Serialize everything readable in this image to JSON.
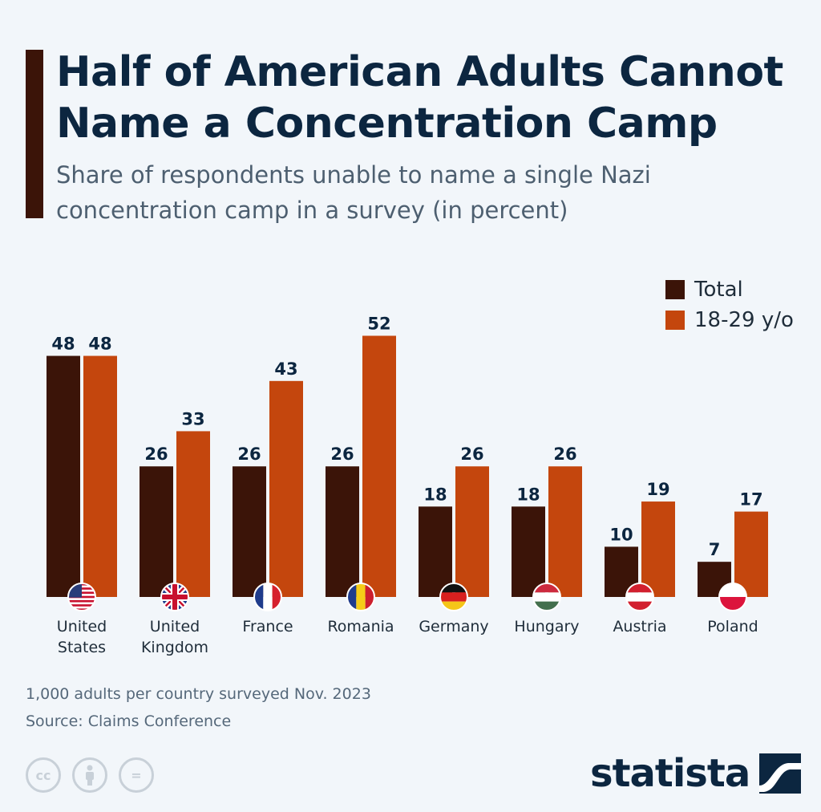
{
  "header": {
    "title": "Half of American Adults Cannot Name a Concentration Camp",
    "subtitle": "Share of respondents unable to name a single Nazi concentration camp in a survey (in percent)"
  },
  "chart_data": {
    "type": "bar",
    "title": "Half of American Adults Cannot Name a Concentration Camp",
    "subtitle": "Share of respondents unable to name a single Nazi concentration camp in a survey (in percent)",
    "xlabel": "",
    "ylabel": "",
    "ylim": [
      0,
      52
    ],
    "grid": false,
    "legend_position": "top-right",
    "categories": [
      "United States",
      "United Kingdom",
      "France",
      "Romania",
      "Germany",
      "Hungary",
      "Austria",
      "Poland"
    ],
    "category_lines": [
      [
        "United",
        "States"
      ],
      [
        "United",
        "Kingdom"
      ],
      [
        "France"
      ],
      [
        "Romania"
      ],
      [
        "Germany"
      ],
      [
        "Hungary"
      ],
      [
        "Austria"
      ],
      [
        "Poland"
      ]
    ],
    "flags": [
      "us-flag-icon",
      "uk-flag-icon",
      "france-flag-icon",
      "romania-flag-icon",
      "germany-flag-icon",
      "hungary-flag-icon",
      "austria-flag-icon",
      "poland-flag-icon"
    ],
    "series": [
      {
        "name": "Total",
        "color": "#3b1408",
        "values": [
          48,
          26,
          26,
          26,
          18,
          18,
          10,
          7
        ]
      },
      {
        "name": "18-29 y/o",
        "color": "#c4460d",
        "values": [
          48,
          33,
          43,
          52,
          26,
          26,
          19,
          17
        ]
      }
    ]
  },
  "legend": {
    "total_label": "Total",
    "young_label": "18-29 y/o"
  },
  "footer": {
    "note": "1,000 adults per country surveyed Nov. 2023",
    "source": "Source: Claims Conference",
    "license_cc": "cc",
    "license_eq": "=",
    "brand": "statista"
  },
  "colors": {
    "total": "#3b1408",
    "young": "#c4460d",
    "title": "#0c2640",
    "background": "#f2f6fa"
  }
}
